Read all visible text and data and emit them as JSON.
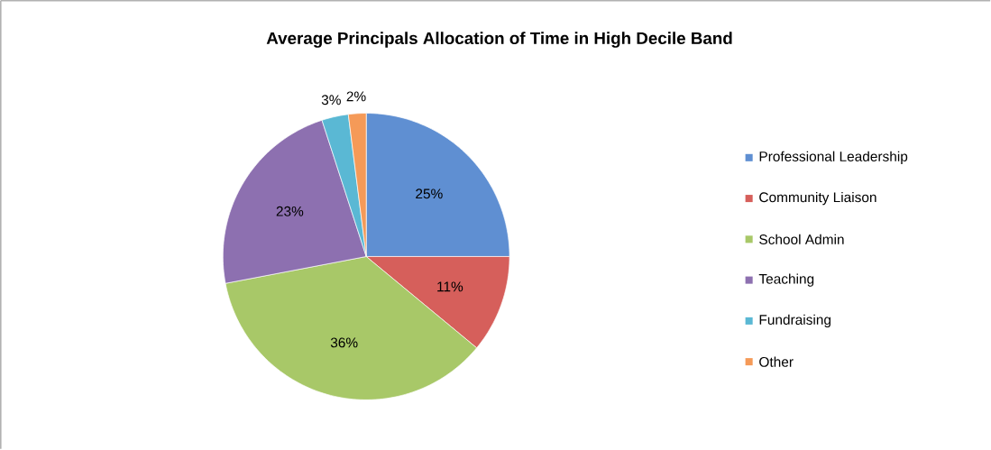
{
  "chart_data": {
    "type": "pie",
    "title": "Average Principals Allocation of Time in High Decile Band",
    "categories": [
      "Professional Leadership",
      "Community Liaison",
      "School Admin",
      "Teaching",
      "Fundraising",
      "Other"
    ],
    "values": [
      25,
      11,
      36,
      23,
      3,
      2
    ],
    "value_labels": [
      "25%",
      "11%",
      "36%",
      "23%",
      "3%",
      "2%"
    ],
    "colors": [
      "#5f8fd2",
      "#d65f5b",
      "#a8c868",
      "#8d70b0",
      "#5ab8d4",
      "#f59a58"
    ],
    "legend": "right"
  }
}
